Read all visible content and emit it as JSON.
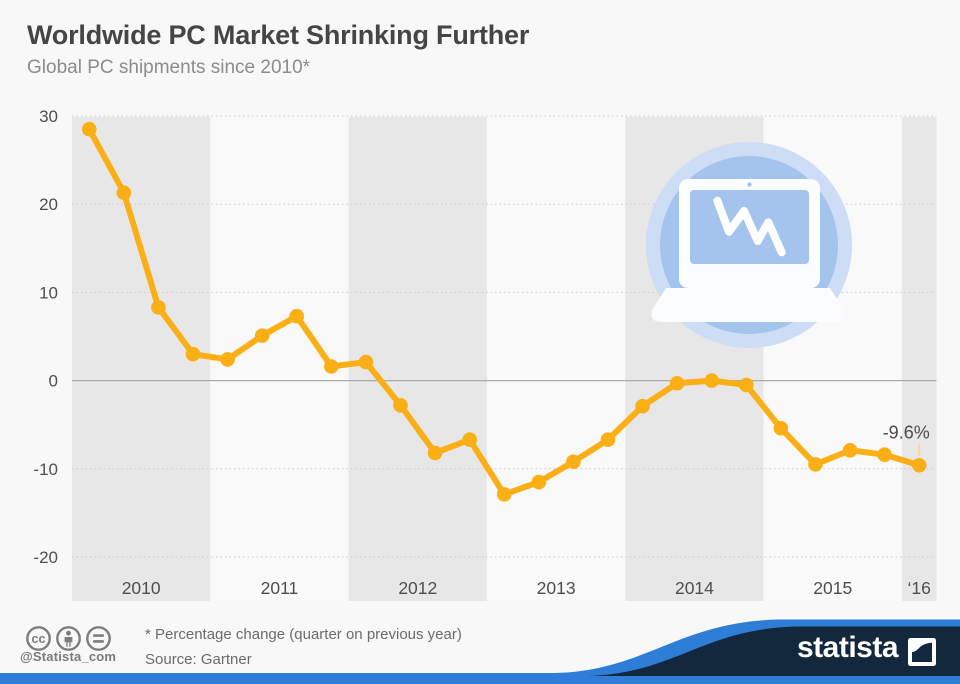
{
  "header": {
    "title": "Worldwide PC Market Shrinking Further",
    "subtitle": "Global PC shipments since 2010*"
  },
  "chart_data": {
    "type": "line",
    "title": "Worldwide PC Market Shrinking Further",
    "subtitle": "Global PC shipments since 2010*",
    "x_labels": [
      "2010",
      "2011",
      "2012",
      "2013",
      "2014",
      "2015",
      "‘16"
    ],
    "quarters_per_label": [
      4,
      4,
      4,
      4,
      4,
      4,
      1
    ],
    "values": [
      28.5,
      21.3,
      8.3,
      3.0,
      2.4,
      5.1,
      7.3,
      1.6,
      2.1,
      -2.8,
      -8.2,
      -6.7,
      -12.9,
      -11.5,
      -9.2,
      -6.7,
      -2.9,
      -0.3,
      0.0,
      -0.5,
      -5.4,
      -9.5,
      -7.9,
      -8.4,
      -9.6
    ],
    "y_ticks": [
      30,
      20,
      10,
      0,
      -10,
      -20
    ],
    "ylim": [
      -20,
      30
    ],
    "grid": "dotted horizontal, solid zero line",
    "legend": "none",
    "annotation": {
      "text": "-9.6%",
      "index": 24
    },
    "colors": {
      "line": "#fbaf17",
      "point": "#fbaf17",
      "annotation_callout": "#fbd596",
      "band_even": "#e7e7e7",
      "band_odd": "#f9f9f9",
      "gridline": "#c9c9c9",
      "zero_line": "#aaaaaa"
    }
  },
  "icon": {
    "name": "laptop-with-declining-chart",
    "colors": {
      "ring": "#cdddf5",
      "disc": "#a4c4ee",
      "laptop": "#fbfcfe",
      "zigzag": "#ffffff"
    }
  },
  "footer": {
    "license_icons": [
      "cc",
      "attribution",
      "no-derivatives"
    ],
    "handle": "@Statista_com",
    "footnote": "* Percentage change (quarter on previous year)",
    "source": "Source: Gartner",
    "brand": "statista",
    "colors": {
      "navy": "#14283d",
      "blue": "#2e7dd7",
      "icon_gray": "#7d7d7d"
    }
  }
}
